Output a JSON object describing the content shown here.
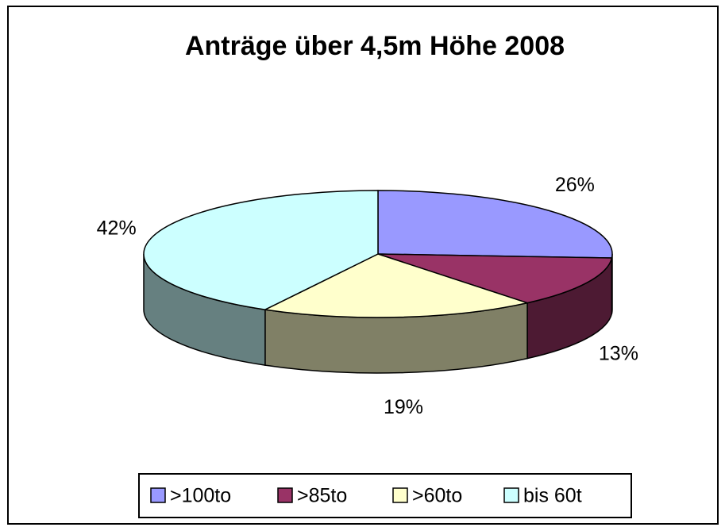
{
  "chart_data": {
    "type": "pie3d",
    "title": "Anträge über 4,5m Höhe 2008",
    "categories": [
      ">100to",
      ">85to",
      ">60to",
      "bis 60t"
    ],
    "values": [
      26,
      13,
      19,
      42
    ],
    "value_labels": [
      "26%",
      "13%",
      "19%",
      "42%"
    ],
    "colors": [
      "#9999ff",
      "#993366",
      "#ffffcc",
      "#ccffff"
    ],
    "legend": "bottom"
  }
}
